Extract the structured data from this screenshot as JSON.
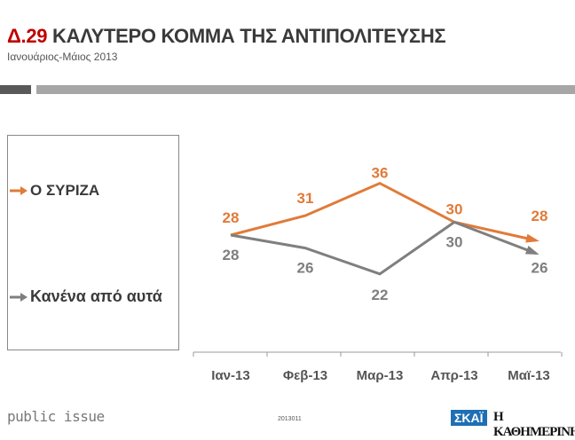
{
  "header": {
    "code": "Δ.29",
    "title": "ΚΑΛΥΤΕΡΟ ΚΟΜΜΑ ΤΗΣ ΑΝΤΙΠΟΛΙΤΕΥΣΗΣ",
    "subtitle": "Ιανουάριος-Μάιος 2013"
  },
  "footer": {
    "brand": "public issue",
    "code": "2013011",
    "logo1": "ΣΚΑΪ",
    "logo2": "Η ΚΑΘΗΜΕΡΙΝΗ"
  },
  "chart_data": {
    "type": "line",
    "categories": [
      "Ιαν-13",
      "Φεβ-13",
      "Μαρ-13",
      "Απρ-13",
      "Μαϊ-13"
    ],
    "series": [
      {
        "name": "Ο ΣΥΡΙΖΑ",
        "values": [
          28,
          31,
          36,
          30,
          28
        ],
        "color": "#e07b39"
      },
      {
        "name": "Κανένα από αυτά",
        "values": [
          28,
          26,
          22,
          30,
          26
        ],
        "color": "#7f7f7f"
      }
    ],
    "legend": "left",
    "grid": false
  }
}
